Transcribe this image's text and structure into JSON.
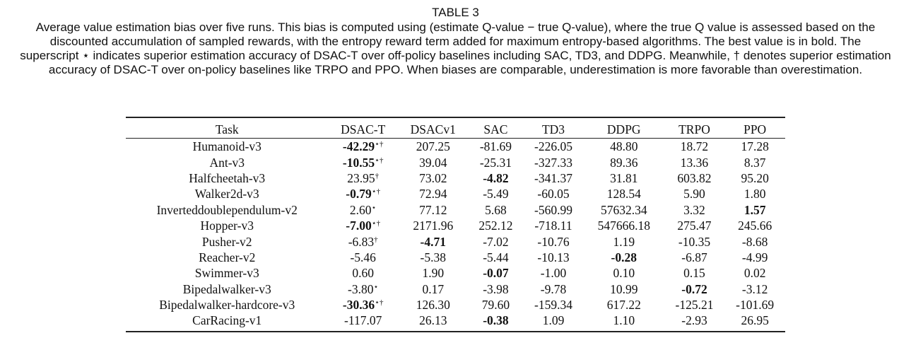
{
  "caption": {
    "label": "TABLE 3",
    "text": "Average value estimation bias over five runs. This bias is computed using (estimate Q-value − true Q-value), where the true Q value is assessed based on the discounted accumulation of sampled rewards, with the entropy reward term added for maximum entropy-based algorithms. The best value is in bold. The superscript ⋆ indicates superior estimation accuracy of DSAC-T over off-policy baselines including SAC, TD3, and DDPG. Meanwhile, † denotes superior estimation accuracy of DSAC-T over on-policy baselines like TRPO and PPO. When biases are comparable, underestimation is more favorable than overestimation."
  },
  "table": {
    "headers": [
      "Task",
      "DSAC-T",
      "DSACv1",
      "SAC",
      "TD3",
      "DDPG",
      "TRPO",
      "PPO"
    ],
    "rows": [
      {
        "task": "Humanoid-v3",
        "cells": [
          {
            "v": "-42.29",
            "b": true,
            "s": "⋆†"
          },
          {
            "v": "207.25"
          },
          {
            "v": "-81.69"
          },
          {
            "v": "-226.05"
          },
          {
            "v": "48.80"
          },
          {
            "v": "18.72"
          },
          {
            "v": "17.28"
          }
        ]
      },
      {
        "task": "Ant-v3",
        "cells": [
          {
            "v": "-10.55",
            "b": true,
            "s": "⋆†"
          },
          {
            "v": "39.04"
          },
          {
            "v": "-25.31"
          },
          {
            "v": "-327.33"
          },
          {
            "v": "89.36"
          },
          {
            "v": "13.36"
          },
          {
            "v": "8.37"
          }
        ]
      },
      {
        "task": "Halfcheetah-v3",
        "cells": [
          {
            "v": "23.95",
            "s": "†"
          },
          {
            "v": "73.02"
          },
          {
            "v": "-4.82",
            "b": true
          },
          {
            "v": "-341.37"
          },
          {
            "v": "31.81"
          },
          {
            "v": "603.82"
          },
          {
            "v": "95.20"
          }
        ]
      },
      {
        "task": "Walker2d-v3",
        "cells": [
          {
            "v": "-0.79",
            "b": true,
            "s": "⋆†"
          },
          {
            "v": "72.94"
          },
          {
            "v": "-5.49"
          },
          {
            "v": "-60.05"
          },
          {
            "v": "128.54"
          },
          {
            "v": "5.90"
          },
          {
            "v": "1.80"
          }
        ]
      },
      {
        "task": "Inverteddoublependulum-v2",
        "cells": [
          {
            "v": "2.60",
            "s": "⋆"
          },
          {
            "v": "77.12"
          },
          {
            "v": "5.68"
          },
          {
            "v": "-560.99"
          },
          {
            "v": "57632.34"
          },
          {
            "v": "3.32"
          },
          {
            "v": "1.57",
            "b": true
          }
        ]
      },
      {
        "task": "Hopper-v3",
        "cells": [
          {
            "v": "-7.00",
            "b": true,
            "s": "⋆†"
          },
          {
            "v": "2171.96"
          },
          {
            "v": "252.12"
          },
          {
            "v": "-718.11"
          },
          {
            "v": "547666.18"
          },
          {
            "v": "275.47"
          },
          {
            "v": "245.66"
          }
        ]
      },
      {
        "task": "Pusher-v2",
        "cells": [
          {
            "v": "-6.83",
            "s": "†"
          },
          {
            "v": "-4.71",
            "b": true
          },
          {
            "v": "-7.02"
          },
          {
            "v": "-10.76"
          },
          {
            "v": "1.19"
          },
          {
            "v": "-10.35"
          },
          {
            "v": "-8.68"
          }
        ]
      },
      {
        "task": "Reacher-v2",
        "cells": [
          {
            "v": "-5.46"
          },
          {
            "v": "-5.38"
          },
          {
            "v": "-5.44"
          },
          {
            "v": "-10.13"
          },
          {
            "v": "-0.28",
            "b": true
          },
          {
            "v": "-6.87"
          },
          {
            "v": "-4.99"
          }
        ]
      },
      {
        "task": "Swimmer-v3",
        "cells": [
          {
            "v": "0.60"
          },
          {
            "v": "1.90"
          },
          {
            "v": "-0.07",
            "b": true
          },
          {
            "v": "-1.00"
          },
          {
            "v": "0.10"
          },
          {
            "v": "0.15"
          },
          {
            "v": "0.02"
          }
        ]
      },
      {
        "task": "Bipedalwalker-v3",
        "cells": [
          {
            "v": "-3.80",
            "s": "⋆"
          },
          {
            "v": "0.17"
          },
          {
            "v": "-3.98"
          },
          {
            "v": "-9.78"
          },
          {
            "v": "10.99"
          },
          {
            "v": "-0.72",
            "b": true
          },
          {
            "v": "-3.12"
          }
        ]
      },
      {
        "task": "Bipedalwalker-hardcore-v3",
        "cells": [
          {
            "v": "-30.36",
            "b": true,
            "s": "⋆†"
          },
          {
            "v": "126.30"
          },
          {
            "v": "79.60"
          },
          {
            "v": "-159.34"
          },
          {
            "v": "617.22"
          },
          {
            "v": "-125.21"
          },
          {
            "v": "-101.69"
          }
        ]
      },
      {
        "task": "CarRacing-v1",
        "cells": [
          {
            "v": "-117.07"
          },
          {
            "v": "26.13"
          },
          {
            "v": "-0.38",
            "b": true
          },
          {
            "v": "1.09"
          },
          {
            "v": "1.10"
          },
          {
            "v": "-2.93"
          },
          {
            "v": "26.95"
          }
        ]
      }
    ]
  }
}
